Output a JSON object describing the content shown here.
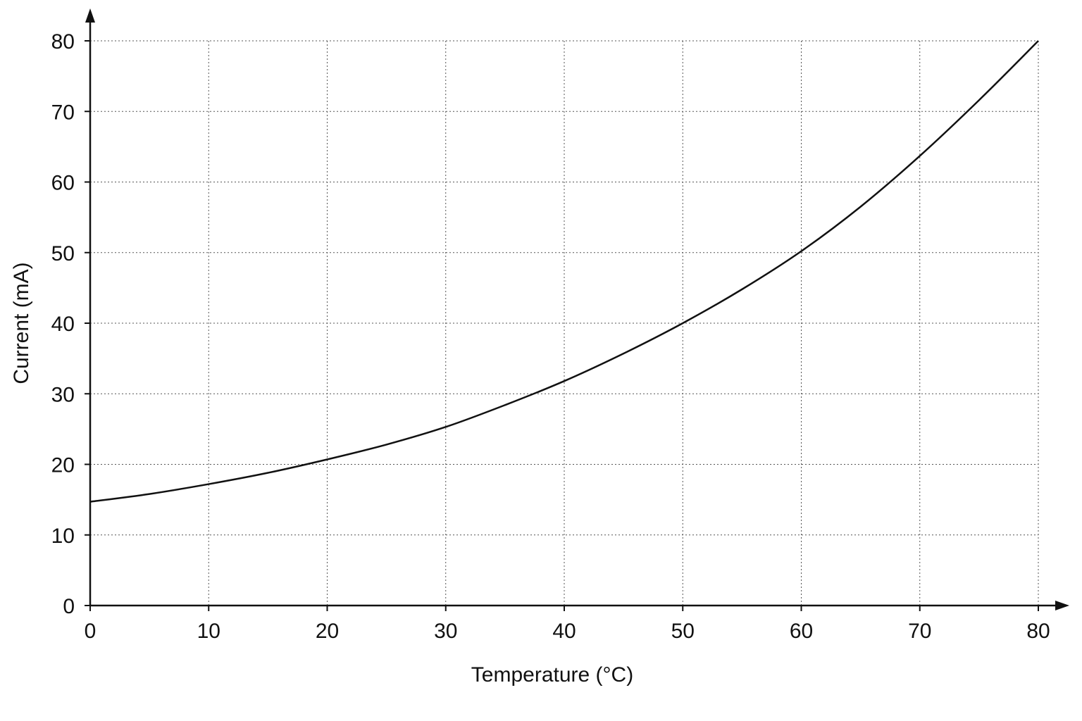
{
  "chart_data": {
    "type": "line",
    "title": "",
    "xlabel": "Temperature (°C)",
    "ylabel": "Current (mA)",
    "xlim": [
      0,
      80
    ],
    "ylim": [
      0,
      80
    ],
    "x_ticks": [
      "0",
      "10",
      "20",
      "30",
      "40",
      "50",
      "60",
      "70",
      "80"
    ],
    "y_ticks": [
      "0",
      "10",
      "20",
      "30",
      "40",
      "50",
      "60",
      "70",
      "80"
    ],
    "grid": true,
    "line_color": "#111111",
    "series": [
      {
        "x": [
          0,
          5,
          10,
          15,
          20,
          25,
          30,
          35,
          40,
          45,
          50,
          55,
          60,
          65,
          70,
          75,
          80
        ],
        "values": [
          14.7,
          15.8,
          17.2,
          18.8,
          20.7,
          22.8,
          25.3,
          28.4,
          31.8,
          35.7,
          40.0,
          44.8,
          50.2,
          56.5,
          63.7,
          71.6,
          80.0
        ]
      }
    ]
  }
}
